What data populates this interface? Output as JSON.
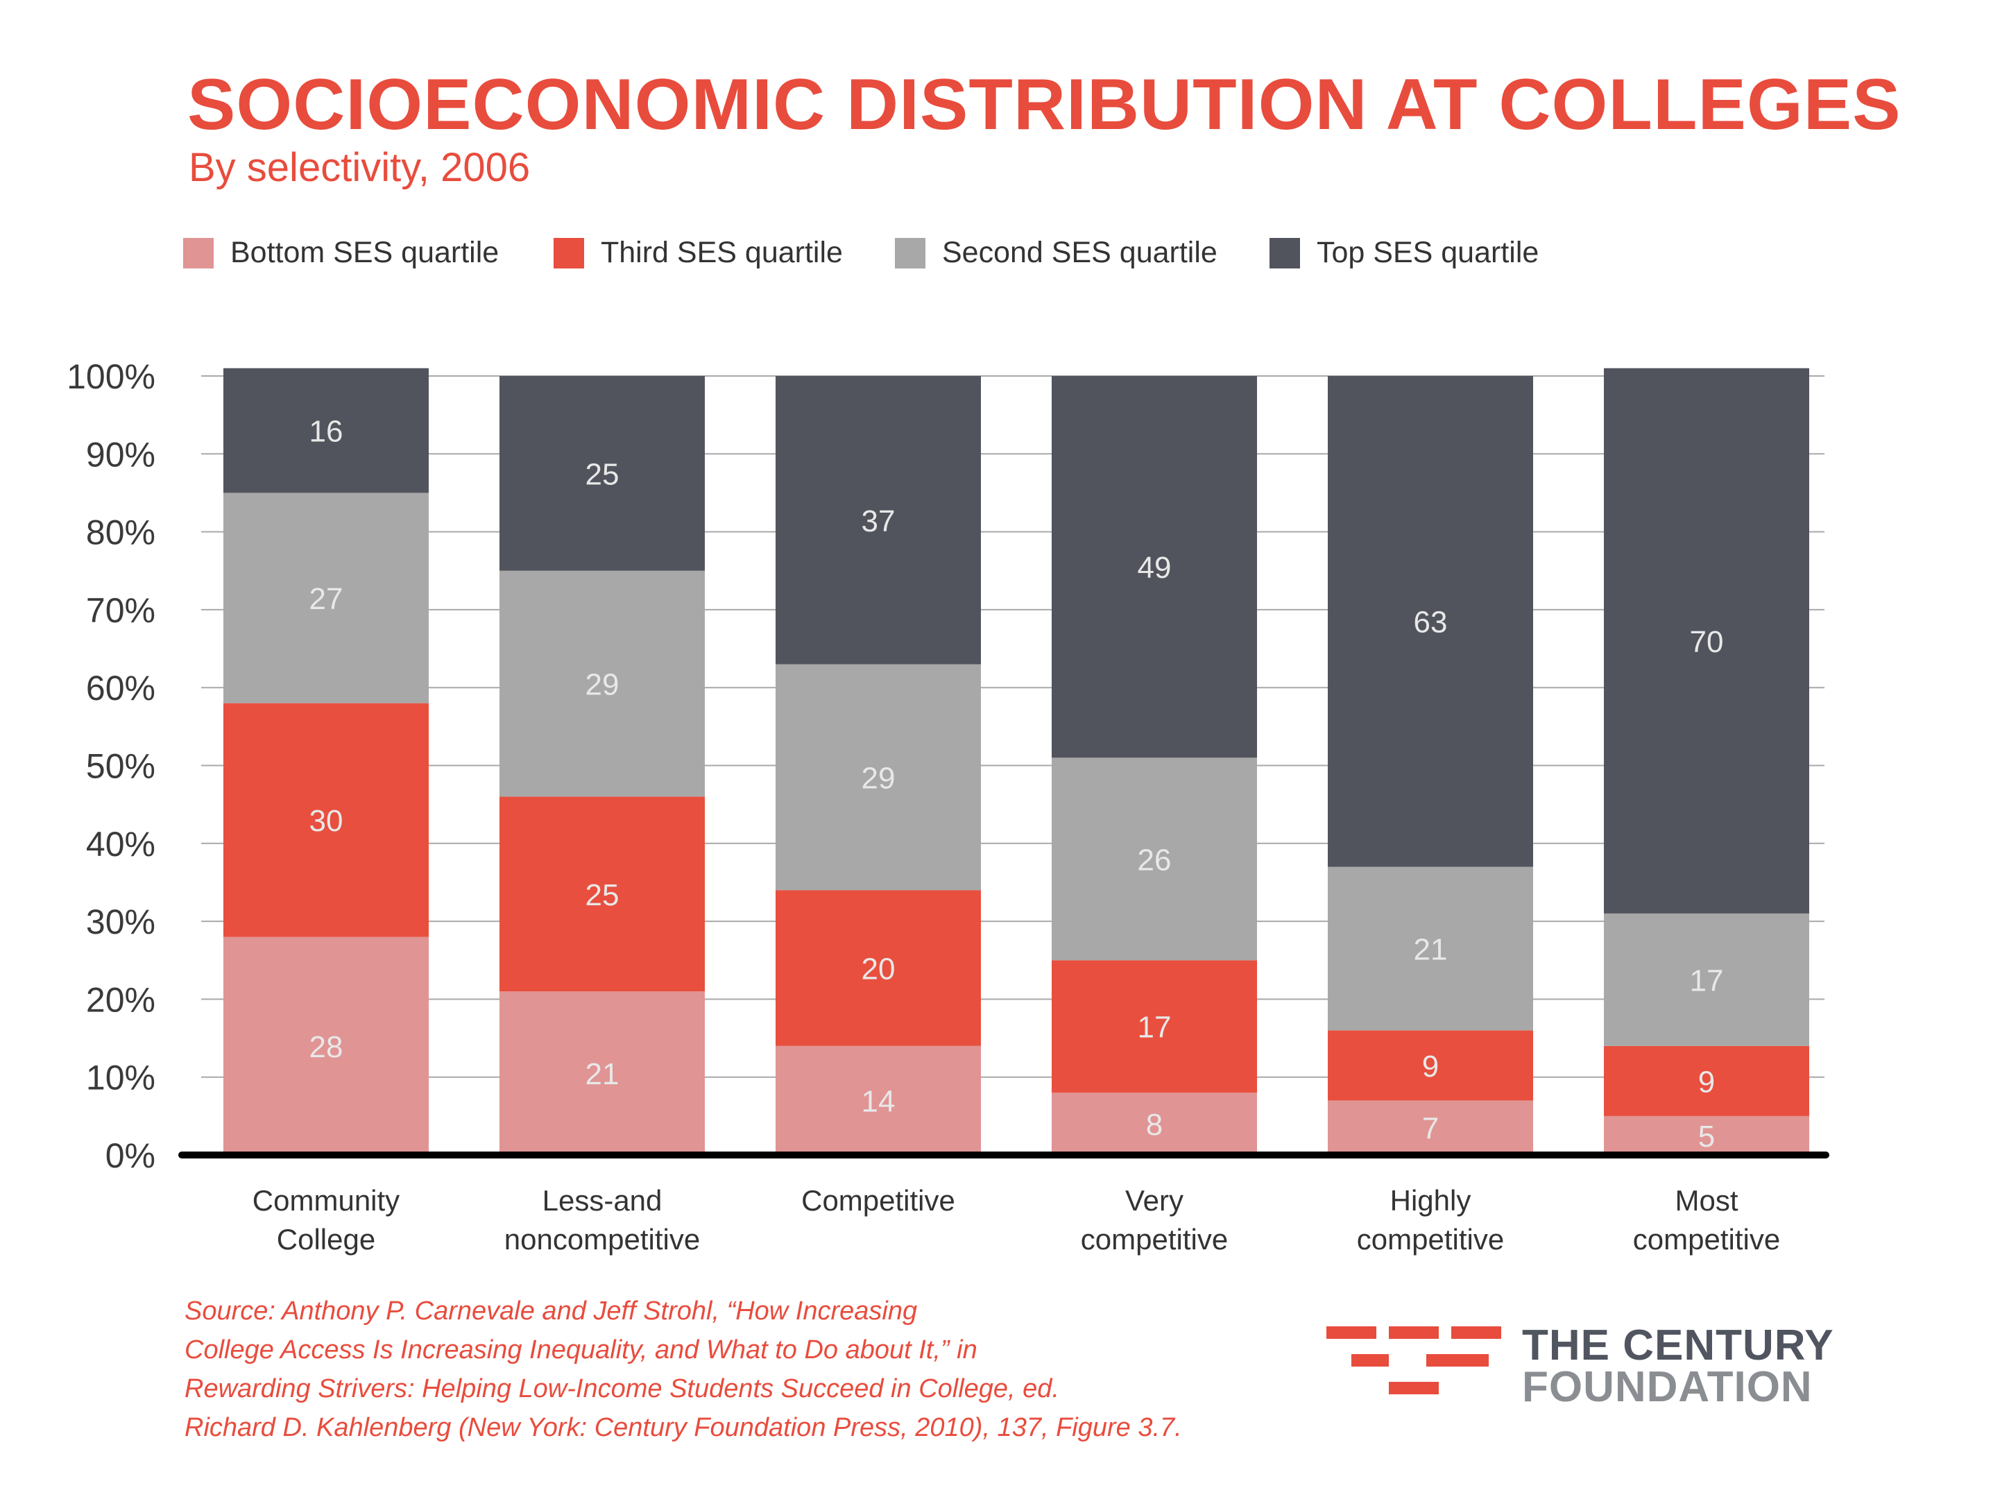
{
  "title": "SOCIOECONOMIC DISTRIBUTION AT COLLEGES",
  "subtitle": "By selectivity, 2006",
  "legend": [
    {
      "label": "Bottom SES quartile",
      "color": "#e09494"
    },
    {
      "label": "Third SES quartile",
      "color": "#e84f3e"
    },
    {
      "label": "Second SES quartile",
      "color": "#a8a8a8"
    },
    {
      "label": "Top SES quartile",
      "color": "#52545d"
    }
  ],
  "source_lines": [
    "Source: Anthony P. Carnevale and Jeff Strohl, “How Increasing",
    "College Access Is Increasing Inequality, and What to Do about It,” in",
    "Rewarding Strivers: Helping Low-Income Students Succeed in College, ed.",
    "Richard D. Kahlenberg (New York: Century Foundation Press, 2010), 137, Figure 3.7."
  ],
  "logo": {
    "line1": "THE CENTURY",
    "line2": "FOUNDATION",
    "color": "#e84c3d"
  },
  "chart_data": {
    "type": "bar",
    "stacked": true,
    "title": "SOCIOECONOMIC DISTRIBUTION AT COLLEGES",
    "subtitle": "By selectivity, 2006",
    "xlabel": "",
    "ylabel": "",
    "ylim": [
      0,
      100
    ],
    "yticks": [
      "0%",
      "10%",
      "20%",
      "30%",
      "40%",
      "50%",
      "60%",
      "70%",
      "80%",
      "90%",
      "100%"
    ],
    "categories": [
      [
        "Community",
        "College"
      ],
      [
        "Less-and",
        "noncompetitive"
      ],
      [
        "Competitive"
      ],
      [
        "Very",
        "competitive"
      ],
      [
        "Highly",
        "competitive"
      ],
      [
        "Most",
        "competitive"
      ]
    ],
    "series": [
      {
        "name": "Bottom SES quartile",
        "color": "#e09494",
        "values": [
          28,
          21,
          14,
          8,
          7,
          5
        ]
      },
      {
        "name": "Third SES quartile",
        "color": "#e84f3e",
        "values": [
          30,
          25,
          20,
          17,
          9,
          9
        ]
      },
      {
        "name": "Second SES quartile",
        "color": "#a8a8a8",
        "values": [
          27,
          29,
          29,
          26,
          21,
          17
        ]
      },
      {
        "name": "Top SES quartile",
        "color": "#52545d",
        "values": [
          16,
          25,
          37,
          49,
          63,
          70
        ]
      }
    ],
    "grid": true,
    "legend_position": "top-left"
  }
}
